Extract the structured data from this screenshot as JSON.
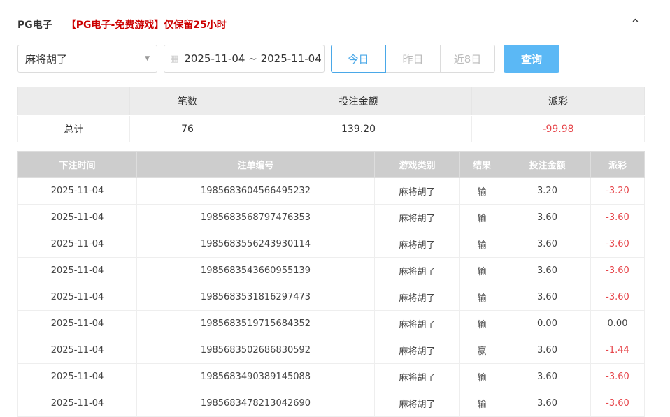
{
  "header": {
    "title": "PG电子",
    "notice": "【PG电子-免费游戏】仅保留25小时",
    "collapse_icon": "chevron-up-icon"
  },
  "filters": {
    "game": "麻将胡了",
    "date_range": "2025-11-04 ~ 2025-11-04",
    "today": "今日",
    "yesterday": "昨日",
    "last8": "近8日",
    "query": "查询"
  },
  "summary": {
    "headers": [
      "",
      "笔数",
      "投注金额",
      "派彩"
    ],
    "label": "总计",
    "count": "76",
    "bet": "139.20",
    "payout": "-99.98"
  },
  "table": {
    "headers": [
      "下注时间",
      "注单编号",
      "游戏类别",
      "结果",
      "投注金额",
      "派彩"
    ],
    "rows": [
      [
        "2025-11-04",
        "1985683604566495232",
        "麻将胡了",
        "输",
        "3.20",
        "-3.20"
      ],
      [
        "2025-11-04",
        "1985683568797476353",
        "麻将胡了",
        "输",
        "3.60",
        "-3.60"
      ],
      [
        "2025-11-04",
        "1985683556243930114",
        "麻将胡了",
        "输",
        "3.60",
        "-3.60"
      ],
      [
        "2025-11-04",
        "1985683543660955139",
        "麻将胡了",
        "输",
        "3.60",
        "-3.60"
      ],
      [
        "2025-11-04",
        "1985683531816297473",
        "麻将胡了",
        "输",
        "3.60",
        "-3.60"
      ],
      [
        "2025-11-04",
        "1985683519715684352",
        "麻将胡了",
        "输",
        "0.00",
        "0.00"
      ],
      [
        "2025-11-04",
        "1985683502686830592",
        "麻将胡了",
        "赢",
        "3.60",
        "-1.44"
      ],
      [
        "2025-11-04",
        "1985683490389145088",
        "麻将胡了",
        "输",
        "3.60",
        "-3.60"
      ],
      [
        "2025-11-04",
        "1985683478213042690",
        "麻将胡了",
        "输",
        "3.60",
        "-3.60"
      ]
    ]
  },
  "colors": {
    "accent": "#4aa8e8",
    "button": "#5bb8f5",
    "negative": "#e6454a",
    "notice": "#cc0000"
  }
}
